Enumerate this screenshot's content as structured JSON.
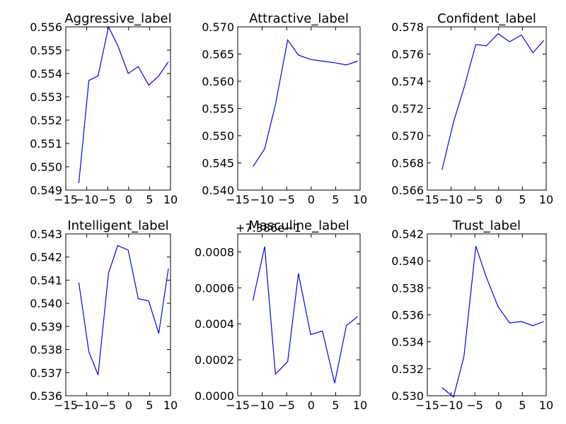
{
  "line_color": "#0000ff",
  "chart_data": [
    {
      "type": "line",
      "title": "Aggressive_label",
      "xlim": [
        -15,
        10
      ],
      "ylim": [
        0.549,
        0.556
      ],
      "xticks": [
        -15,
        -10,
        -5,
        0,
        5,
        10
      ],
      "xtick_labels": [
        "−15",
        "−10",
        "−5",
        "0",
        "5",
        "10"
      ],
      "yticks": [
        0.549,
        0.55,
        0.551,
        0.552,
        0.553,
        0.554,
        0.555,
        0.556
      ],
      "ytick_labels": [
        "0.549",
        "0.550",
        "0.551",
        "0.552",
        "0.553",
        "0.554",
        "0.555",
        "0.556"
      ],
      "offset_text": "",
      "x": [
        -11.9,
        -9.5,
        -7.3,
        -4.8,
        -2.6,
        -0.1,
        2.3,
        4.8,
        7.2,
        9.5
      ],
      "y": [
        0.5493,
        0.5537,
        0.5539,
        0.556,
        0.5552,
        0.554,
        0.5543,
        0.5535,
        0.5539,
        0.5545
      ]
    },
    {
      "type": "line",
      "title": "Attractive_label",
      "xlim": [
        -15,
        10
      ],
      "ylim": [
        0.54,
        0.57
      ],
      "xticks": [
        -15,
        -10,
        -5,
        0,
        5,
        10
      ],
      "xtick_labels": [
        "−15",
        "−10",
        "−5",
        "0",
        "5",
        "10"
      ],
      "yticks": [
        0.54,
        0.545,
        0.55,
        0.555,
        0.56,
        0.565,
        0.57
      ],
      "ytick_labels": [
        "0.540",
        "0.545",
        "0.550",
        "0.555",
        "0.560",
        "0.565",
        "0.570"
      ],
      "offset_text": "",
      "x": [
        -11.9,
        -9.5,
        -7.3,
        -4.8,
        -2.6,
        -0.1,
        2.3,
        4.8,
        7.2,
        9.5
      ],
      "y": [
        0.5443,
        0.5476,
        0.5557,
        0.5676,
        0.5648,
        0.564,
        0.5637,
        0.5634,
        0.563,
        0.5637
      ]
    },
    {
      "type": "line",
      "title": "Confident_label",
      "xlim": [
        -15,
        10
      ],
      "ylim": [
        0.566,
        0.578
      ],
      "xticks": [
        -15,
        -10,
        -5,
        0,
        5,
        10
      ],
      "xtick_labels": [
        "−15",
        "−10",
        "−5",
        "0",
        "5",
        "10"
      ],
      "yticks": [
        0.566,
        0.568,
        0.57,
        0.572,
        0.574,
        0.576,
        0.578
      ],
      "ytick_labels": [
        "0.566",
        "0.568",
        "0.570",
        "0.572",
        "0.574",
        "0.576",
        "0.578"
      ],
      "offset_text": "",
      "x": [
        -11.9,
        -9.5,
        -7.3,
        -4.8,
        -2.6,
        -0.1,
        2.3,
        4.8,
        7.2,
        9.5
      ],
      "y": [
        0.5675,
        0.571,
        0.5735,
        0.5767,
        0.5766,
        0.5775,
        0.5769,
        0.5774,
        0.5761,
        0.577
      ]
    },
    {
      "type": "line",
      "title": "Intelligent_label",
      "xlim": [
        -15,
        10
      ],
      "ylim": [
        0.536,
        0.543
      ],
      "xticks": [
        -15,
        -10,
        -5,
        0,
        5,
        10
      ],
      "xtick_labels": [
        "−15",
        "−10",
        "−5",
        "0",
        "5",
        "10"
      ],
      "yticks": [
        0.536,
        0.537,
        0.538,
        0.539,
        0.54,
        0.541,
        0.542,
        0.543
      ],
      "ytick_labels": [
        "0.536",
        "0.537",
        "0.538",
        "0.539",
        "0.540",
        "0.541",
        "0.542",
        "0.543"
      ],
      "offset_text": "",
      "x": [
        -11.9,
        -9.5,
        -7.3,
        -4.8,
        -2.6,
        -0.1,
        2.3,
        4.8,
        7.2,
        9.5
      ],
      "y": [
        0.5409,
        0.5379,
        0.5369,
        0.5413,
        0.5425,
        0.5423,
        0.5402,
        0.5401,
        0.5387,
        0.5415
      ]
    },
    {
      "type": "line",
      "title": "Masculine_label",
      "xlim": [
        -15,
        10
      ],
      "ylim": [
        0.0,
        0.0009
      ],
      "xticks": [
        -15,
        -10,
        -5,
        0,
        5,
        10
      ],
      "xtick_labels": [
        "−15",
        "−10",
        "−5",
        "0",
        "5",
        "10"
      ],
      "yticks": [
        0.0,
        0.0002,
        0.0004,
        0.0006,
        0.0008
      ],
      "ytick_labels": [
        "0.0000",
        "0.0002",
        "0.0004",
        "0.0006",
        "0.0008"
      ],
      "offset_text": "+7.386e−1",
      "x": [
        -11.9,
        -9.5,
        -7.3,
        -4.8,
        -2.6,
        -0.1,
        2.3,
        4.8,
        7.2,
        9.5
      ],
      "y": [
        0.00053,
        0.00083,
        0.00012,
        0.00019,
        0.00068,
        0.00034,
        0.00036,
        7e-05,
        0.00039,
        0.00044
      ]
    },
    {
      "type": "line",
      "title": "Trust_label",
      "xlim": [
        -15,
        10
      ],
      "ylim": [
        0.53,
        0.542
      ],
      "xticks": [
        -15,
        -10,
        -5,
        0,
        5,
        10
      ],
      "xtick_labels": [
        "−15",
        "−10",
        "−5",
        "0",
        "5",
        "10"
      ],
      "yticks": [
        0.53,
        0.532,
        0.534,
        0.536,
        0.538,
        0.54,
        0.542
      ],
      "ytick_labels": [
        "0.530",
        "0.532",
        "0.534",
        "0.536",
        "0.538",
        "0.540",
        "0.542"
      ],
      "offset_text": "",
      "x": [
        -11.9,
        -9.5,
        -7.3,
        -4.8,
        -2.6,
        -0.1,
        2.3,
        4.8,
        7.2,
        9.5
      ],
      "y": [
        0.5306,
        0.5299,
        0.5329,
        0.5411,
        0.5388,
        0.5366,
        0.5354,
        0.5355,
        0.5352,
        0.5355
      ]
    }
  ]
}
